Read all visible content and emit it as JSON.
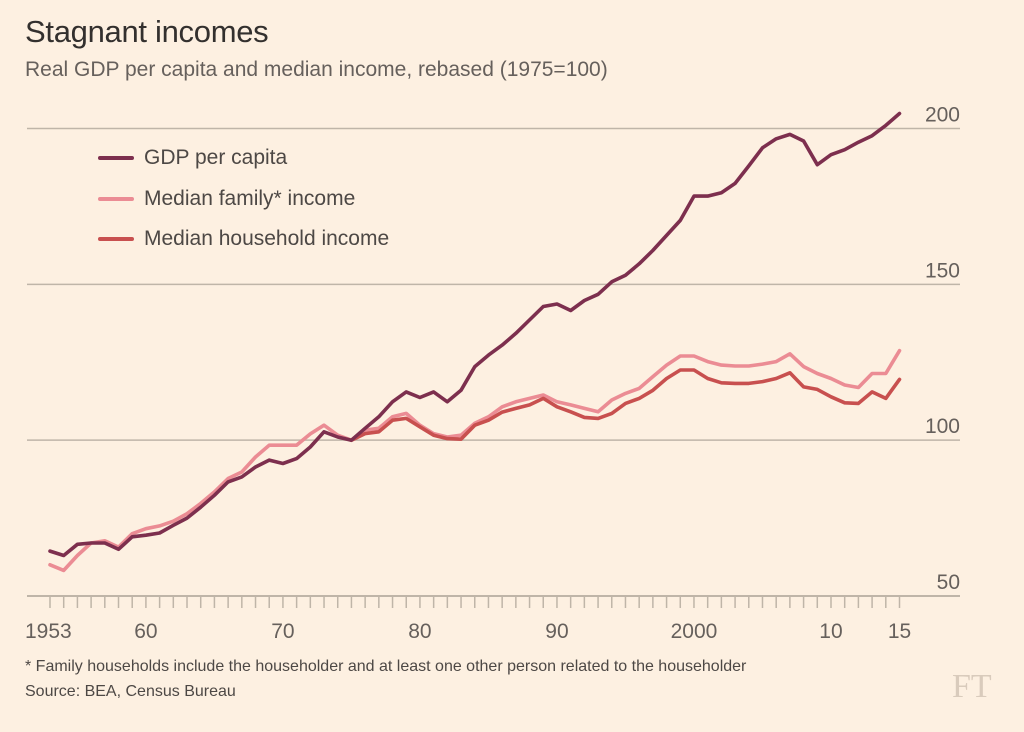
{
  "title": "Stagnant incomes",
  "subtitle": "Real GDP per capita and median income, rebased (1975=100)",
  "footnote": "* Family households include the householder and at least one other person related to the householder",
  "source": "Source: BEA, Census Bureau",
  "logo": "FT",
  "chart_data": {
    "type": "line",
    "title": "Stagnant incomes",
    "subtitle": "Real GDP per capita and median income, rebased (1975=100)",
    "xlabel": "",
    "ylabel": "",
    "xlim": [
      1953,
      2015
    ],
    "ylim": [
      50,
      200
    ],
    "yticks": [
      50,
      100,
      150,
      200
    ],
    "ytick_labels": [
      "50",
      "100",
      "150",
      "200"
    ],
    "xticks": [
      1953,
      1960,
      1970,
      1980,
      1990,
      2000,
      2010,
      2015
    ],
    "xtick_labels": [
      "1953",
      "60",
      "70",
      "80",
      "90",
      "2000",
      "10",
      "15"
    ],
    "minor_xticks_every_year": true,
    "grid": "horizontal",
    "yaxis_side": "right",
    "legend_position": "top-left",
    "series": [
      {
        "name": "GDP per capita",
        "color": "#7d2f4e",
        "x": [
          1953,
          1954,
          1955,
          1956,
          1957,
          1958,
          1959,
          1960,
          1961,
          1962,
          1963,
          1964,
          1965,
          1966,
          1967,
          1968,
          1969,
          1970,
          1971,
          1972,
          1973,
          1974,
          1975,
          1976,
          1977,
          1978,
          1979,
          1980,
          1981,
          1982,
          1983,
          1984,
          1985,
          1986,
          1987,
          1988,
          1989,
          1990,
          1991,
          1992,
          1993,
          1994,
          1995,
          1996,
          1997,
          1998,
          1999,
          2000,
          2001,
          2002,
          2003,
          2004,
          2005,
          2006,
          2007,
          2008,
          2009,
          2010,
          2011,
          2012,
          2013,
          2014,
          2015
        ],
        "values": [
          64.4,
          63.0,
          66.6,
          67.0,
          67.0,
          65.0,
          69.0,
          69.5,
          70.2,
          72.7,
          75.0,
          78.5,
          82.3,
          86.6,
          88.2,
          91.4,
          93.6,
          92.5,
          94.1,
          97.8,
          102.7,
          101.0,
          100.0,
          103.8,
          107.5,
          112.3,
          115.5,
          113.7,
          115.5,
          112.3,
          116.0,
          123.6,
          127.3,
          130.5,
          134.3,
          138.6,
          142.9,
          143.7,
          141.6,
          144.8,
          146.8,
          150.8,
          152.9,
          156.6,
          160.9,
          165.7,
          170.5,
          178.3,
          178.3,
          179.4,
          182.4,
          188.0,
          193.8,
          196.7,
          198.1,
          196.0,
          188.4,
          191.6,
          193.2,
          195.6,
          197.7,
          201.0,
          204.8
        ]
      },
      {
        "name": "Median family* income",
        "color": "#eb8c94",
        "x": [
          1953,
          1954,
          1955,
          1956,
          1957,
          1958,
          1959,
          1960,
          1961,
          1962,
          1963,
          1964,
          1965,
          1966,
          1967,
          1968,
          1969,
          1970,
          1971,
          1972,
          1973,
          1974,
          1975,
          1976,
          1977,
          1978,
          1979,
          1980,
          1981,
          1982,
          1983,
          1984,
          1985,
          1986,
          1987,
          1988,
          1989,
          1990,
          1991,
          1992,
          1993,
          1994,
          1995,
          1996,
          1997,
          1998,
          1999,
          2000,
          2001,
          2002,
          2003,
          2004,
          2005,
          2006,
          2007,
          2008,
          2009,
          2010,
          2011,
          2012,
          2013,
          2014,
          2015
        ],
        "values": [
          60.0,
          58.2,
          63.0,
          67.0,
          67.7,
          65.7,
          70.0,
          71.6,
          72.5,
          74.0,
          76.4,
          79.7,
          83.4,
          87.7,
          89.8,
          94.6,
          98.4,
          98.4,
          98.4,
          102.0,
          104.8,
          101.6,
          100.0,
          103.2,
          103.8,
          107.5,
          108.6,
          104.8,
          102.1,
          101.0,
          101.6,
          105.4,
          107.5,
          110.7,
          112.3,
          113.4,
          114.5,
          112.3,
          111.3,
          110.2,
          109.1,
          112.9,
          115.0,
          116.6,
          120.4,
          124.1,
          127.0,
          127.0,
          125.2,
          124.1,
          123.8,
          123.8,
          124.4,
          125.2,
          127.7,
          123.6,
          121.4,
          119.8,
          117.7,
          116.9,
          121.4,
          121.4,
          128.7
        ]
      },
      {
        "name": "Median household income",
        "color": "#c8504f",
        "x": [
          1975,
          1976,
          1977,
          1978,
          1979,
          1980,
          1981,
          1982,
          1983,
          1984,
          1985,
          1986,
          1987,
          1988,
          1989,
          1990,
          1991,
          1992,
          1993,
          1994,
          1995,
          1996,
          1997,
          1998,
          1999,
          2000,
          2001,
          2002,
          2003,
          2004,
          2005,
          2006,
          2007,
          2008,
          2009,
          2010,
          2011,
          2012,
          2013,
          2014,
          2015
        ],
        "values": [
          100.0,
          102.1,
          102.7,
          106.4,
          107.0,
          104.3,
          101.6,
          100.5,
          100.3,
          104.8,
          106.4,
          109.0,
          110.2,
          111.3,
          113.4,
          110.7,
          109.1,
          107.3,
          107.0,
          108.6,
          111.8,
          113.4,
          116.0,
          119.8,
          122.5,
          122.5,
          119.8,
          118.4,
          118.2,
          118.2,
          118.8,
          119.8,
          121.6,
          117.1,
          116.3,
          113.9,
          112.0,
          111.8,
          115.5,
          113.4,
          119.5
        ]
      }
    ]
  }
}
